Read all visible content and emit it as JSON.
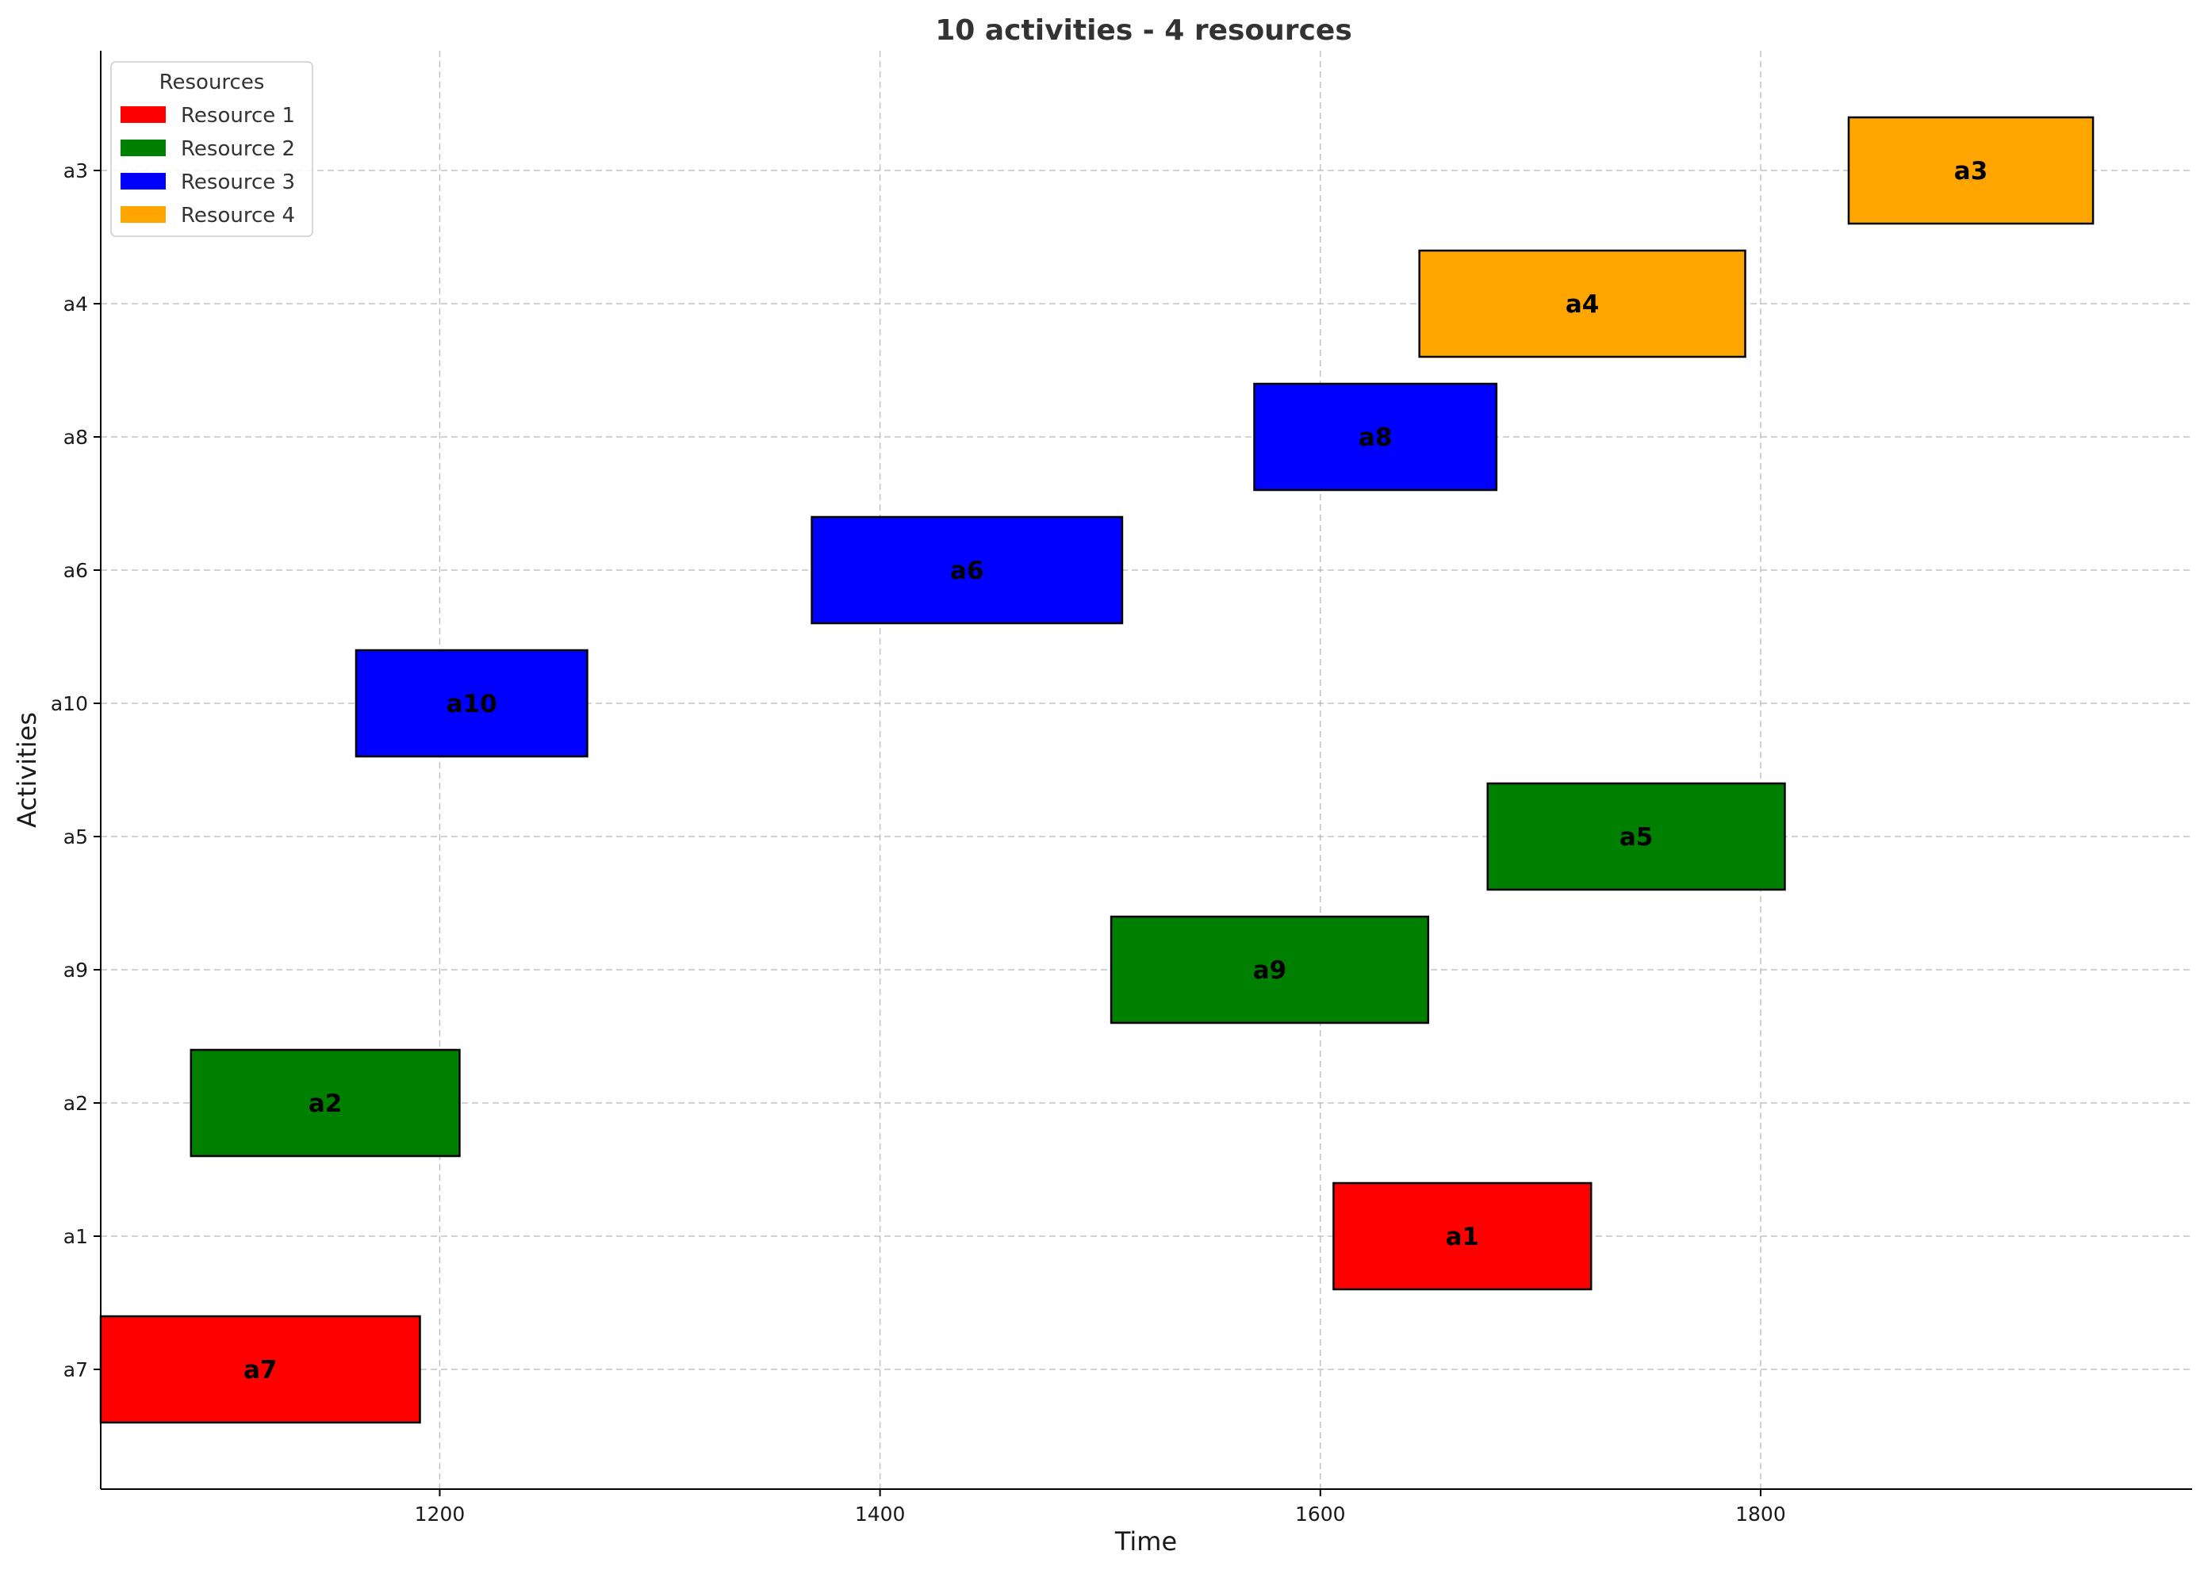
{
  "chart_data": {
    "type": "gantt",
    "title": "10 activities - 4 resources",
    "xlabel": "Time",
    "ylabel": "Activities",
    "xlim": [
      1046,
      1996
    ],
    "x_ticks": [
      1200,
      1400,
      1600,
      1800
    ],
    "grid": true,
    "legend": {
      "title": "Resources",
      "placement": "top-left",
      "entries": [
        {
          "name": "Resource 1",
          "color": "#ff0000"
        },
        {
          "name": "Resource 2",
          "color": "#008000"
        },
        {
          "name": "Resource 3",
          "color": "#0000ff"
        },
        {
          "name": "Resource 4",
          "color": "#ffa500"
        }
      ]
    },
    "categories": [
      "a7",
      "a1",
      "a2",
      "a9",
      "a5",
      "a10",
      "a6",
      "a8",
      "a4",
      "a3"
    ],
    "tasks": [
      {
        "activity": "a7",
        "start": 1046,
        "end": 1191,
        "resource": "Resource 1"
      },
      {
        "activity": "a1",
        "start": 1606,
        "end": 1723,
        "resource": "Resource 1"
      },
      {
        "activity": "a2",
        "start": 1087,
        "end": 1209,
        "resource": "Resource 2"
      },
      {
        "activity": "a9",
        "start": 1505,
        "end": 1649,
        "resource": "Resource 2"
      },
      {
        "activity": "a5",
        "start": 1676,
        "end": 1811,
        "resource": "Resource 2"
      },
      {
        "activity": "a10",
        "start": 1162,
        "end": 1267,
        "resource": "Resource 3"
      },
      {
        "activity": "a6",
        "start": 1369,
        "end": 1510,
        "resource": "Resource 3"
      },
      {
        "activity": "a8",
        "start": 1570,
        "end": 1680,
        "resource": "Resource 3"
      },
      {
        "activity": "a4",
        "start": 1645,
        "end": 1793,
        "resource": "Resource 4"
      },
      {
        "activity": "a3",
        "start": 1840,
        "end": 1951,
        "resource": "Resource 4"
      }
    ]
  }
}
